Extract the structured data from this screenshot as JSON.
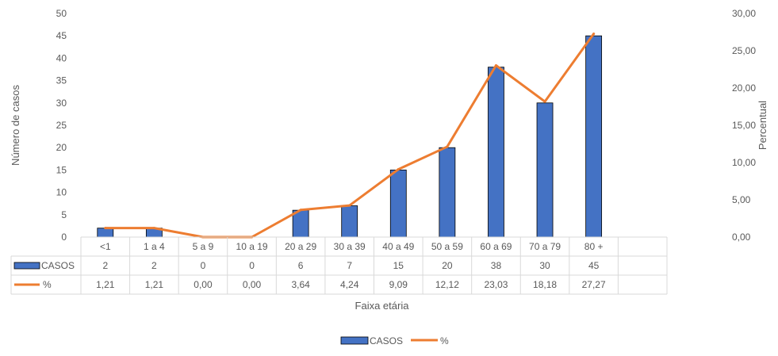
{
  "chart_data": {
    "type": "bar",
    "categories": [
      "<1",
      "1 a 4",
      "5 a 9",
      "10 a 19",
      "20 a 29",
      "30 a 39",
      "40 a 49",
      "50 a 59",
      "60 a 69",
      "70 a 79",
      "80 +"
    ],
    "series": [
      {
        "name": "CASOS",
        "type": "bar",
        "axis": "left",
        "color": "#4472C4",
        "values": [
          2,
          2,
          0,
          0,
          6,
          7,
          15,
          20,
          38,
          30,
          45
        ],
        "labels": [
          "2",
          "2",
          "0",
          "0",
          "6",
          "7",
          "15",
          "20",
          "38",
          "30",
          "45"
        ]
      },
      {
        "name": "%",
        "type": "line",
        "axis": "right",
        "color": "#ED7D31",
        "values": [
          1.21,
          1.21,
          0.0,
          0.0,
          3.64,
          4.24,
          9.09,
          12.12,
          23.03,
          18.18,
          27.27
        ],
        "labels": [
          "1,21",
          "1,21",
          "0,00",
          "0,00",
          "3,64",
          "4,24",
          "9,09",
          "12,12",
          "23,03",
          "18,18",
          "27,27"
        ]
      }
    ],
    "xlabel": "Faixa etária",
    "ylabel": "Número de casos",
    "y2label": "Percentual",
    "ylim": [
      0,
      50
    ],
    "y2lim": [
      0,
      30
    ],
    "yticks": [
      "0",
      "5",
      "10",
      "15",
      "20",
      "25",
      "30",
      "35",
      "40",
      "45",
      "50"
    ],
    "y2ticks": [
      "0,00",
      "5,00",
      "10,00",
      "15,00",
      "20,00",
      "25,00",
      "30,00"
    ],
    "grid": false,
    "data_table": true,
    "legend_position": "bottom"
  }
}
